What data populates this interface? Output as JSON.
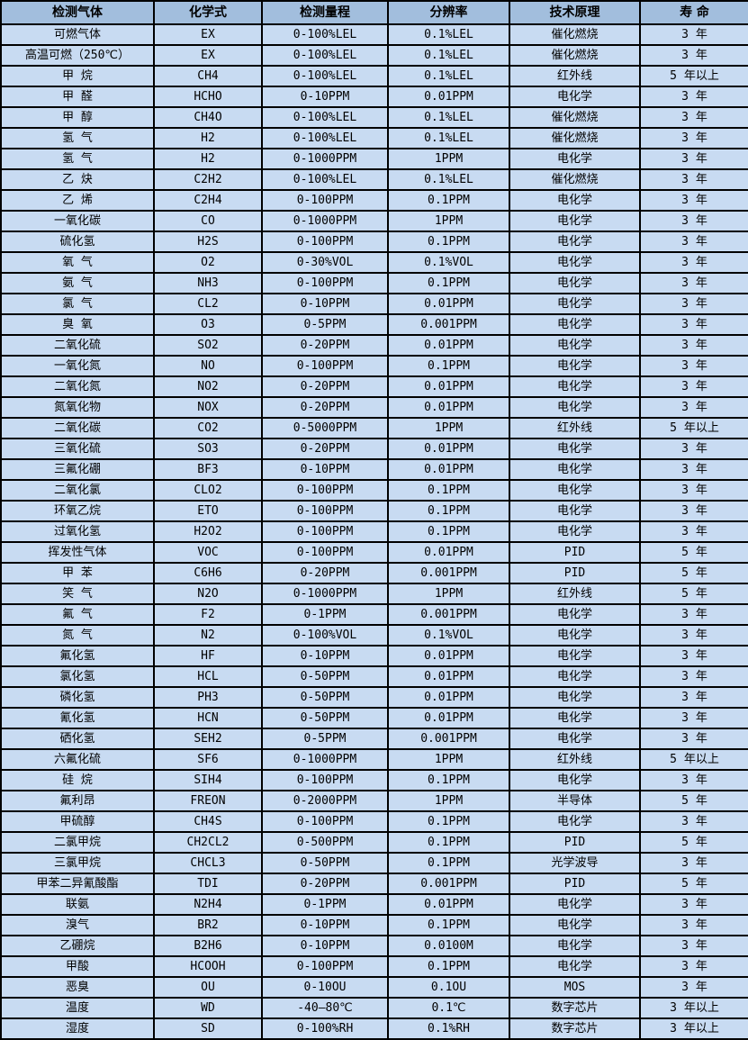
{
  "table": {
    "column_keys": [
      "gas",
      "formula",
      "range",
      "resolution",
      "principle",
      "lifespan"
    ],
    "columns": [
      "检测气体",
      "化学式",
      "检测量程",
      "分辨率",
      "技术原理",
      "寿 命"
    ],
    "rows": [
      [
        "可燃气体",
        "EX",
        "0-100%LEL",
        "0.1%LEL",
        "催化燃烧",
        "3 年"
      ],
      [
        "高温可燃（250℃）",
        "EX",
        "0-100%LEL",
        "0.1%LEL",
        "催化燃烧",
        "3 年"
      ],
      [
        "甲 烷",
        "CH4",
        "0-100%LEL",
        "0.1%LEL",
        "红外线",
        "5 年以上"
      ],
      [
        "甲 醛",
        "HCHO",
        "0-10PPM",
        "0.01PPM",
        "电化学",
        "3 年"
      ],
      [
        "甲 醇",
        "CH4O",
        "0-100%LEL",
        "0.1%LEL",
        "催化燃烧",
        "3 年"
      ],
      [
        "氢 气",
        "H2",
        "0-100%LEL",
        "0.1%LEL",
        "催化燃烧",
        "3 年"
      ],
      [
        "氢 气",
        "H2",
        "0-1000PPM",
        "1PPM",
        "电化学",
        "3 年"
      ],
      [
        "乙 炔",
        "C2H2",
        "0-100%LEL",
        "0.1%LEL",
        "催化燃烧",
        "3 年"
      ],
      [
        "乙 烯",
        "C2H4",
        "0-100PPM",
        "0.1PPM",
        "电化学",
        "3 年"
      ],
      [
        "一氧化碳",
        "CO",
        "0-1000PPM",
        "1PPM",
        "电化学",
        "3 年"
      ],
      [
        "硫化氢",
        "H2S",
        "0-100PPM",
        "0.1PPM",
        "电化学",
        "3 年"
      ],
      [
        "氧 气",
        "O2",
        "0-30%VOL",
        "0.1%VOL",
        "电化学",
        "3 年"
      ],
      [
        "氨 气",
        "NH3",
        "0-100PPM",
        "0.1PPM",
        "电化学",
        "3 年"
      ],
      [
        "氯 气",
        "CL2",
        "0-10PPM",
        "0.01PPM",
        "电化学",
        "3 年"
      ],
      [
        "臭 氧",
        "O3",
        "0-5PPM",
        "0.001PPM",
        "电化学",
        "3 年"
      ],
      [
        "二氧化硫",
        "SO2",
        "0-20PPM",
        "0.01PPM",
        "电化学",
        "3 年"
      ],
      [
        "一氧化氮",
        "NO",
        "0-100PPM",
        "0.1PPM",
        "电化学",
        "3 年"
      ],
      [
        "二氧化氮",
        "NO2",
        "0-20PPM",
        "0.01PPM",
        "电化学",
        "3 年"
      ],
      [
        "氮氧化物",
        "NOX",
        "0-20PPM",
        "0.01PPM",
        "电化学",
        "3 年"
      ],
      [
        "二氧化碳",
        "CO2",
        "0-5000PPM",
        "1PPM",
        "红外线",
        "5 年以上"
      ],
      [
        "三氧化硫",
        "SO3",
        "0-20PPM",
        "0.01PPM",
        "电化学",
        "3 年"
      ],
      [
        "三氟化硼",
        "BF3",
        "0-10PPM",
        "0.01PPM",
        "电化学",
        "3 年"
      ],
      [
        "二氧化氯",
        "CLO2",
        "0-100PPM",
        "0.1PPM",
        "电化学",
        "3 年"
      ],
      [
        "环氧乙烷",
        "ETO",
        "0-100PPM",
        "0.1PPM",
        "电化学",
        "3 年"
      ],
      [
        "过氧化氢",
        "H2O2",
        "0-100PPM",
        "0.1PPM",
        "电化学",
        "3 年"
      ],
      [
        "挥发性气体",
        "VOC",
        "0-100PPM",
        "0.01PPM",
        "PID",
        "5 年"
      ],
      [
        "甲 苯",
        "C6H6",
        "0-20PPM",
        "0.001PPM",
        "PID",
        "5 年"
      ],
      [
        "笑 气",
        "N2O",
        "0-1000PPM",
        "1PPM",
        "红外线",
        "5 年"
      ],
      [
        "氟 气",
        "F2",
        "0-1PPM",
        "0.001PPM",
        "电化学",
        "3 年"
      ],
      [
        "氮 气",
        "N2",
        "0-100%VOL",
        "0.1%VOL",
        "电化学",
        "3 年"
      ],
      [
        "氟化氢",
        "HF",
        "0-10PPM",
        "0.01PPM",
        "电化学",
        "3 年"
      ],
      [
        "氯化氢",
        "HCL",
        "0-50PPM",
        "0.01PPM",
        "电化学",
        "3 年"
      ],
      [
        "磷化氢",
        "PH3",
        "0-50PPM",
        "0.01PPM",
        "电化学",
        "3 年"
      ],
      [
        "氰化氢",
        "HCN",
        "0-50PPM",
        "0.01PPM",
        "电化学",
        "3 年"
      ],
      [
        "硒化氢",
        "SEH2",
        "0-5PPM",
        "0.001PPM",
        "电化学",
        "3 年"
      ],
      [
        "六氟化硫",
        "SF6",
        "0-1000PPM",
        "1PPM",
        "红外线",
        "5 年以上"
      ],
      [
        "硅 烷",
        "SIH4",
        "0-100PPM",
        "0.1PPM",
        "电化学",
        "3 年"
      ],
      [
        "氟利昂",
        "FREON",
        "0-2000PPM",
        "1PPM",
        "半导体",
        "5 年"
      ],
      [
        "甲硫醇",
        "CH4S",
        "0-100PPM",
        "0.1PPM",
        "电化学",
        "3 年"
      ],
      [
        "二氯甲烷",
        "CH2CL2",
        "0-500PPM",
        "0.1PPM",
        "PID",
        "5 年"
      ],
      [
        "三氯甲烷",
        "CHCL3",
        "0-50PPM",
        "0.1PPM",
        "光学波导",
        "3 年"
      ],
      [
        "甲苯二异氰酸酯",
        "TDI",
        "0-20PPM",
        "0.001PPM",
        "PID",
        "5 年"
      ],
      [
        "联氨",
        "N2H4",
        "0-1PPM",
        "0.01PPM",
        "电化学",
        "3 年"
      ],
      [
        "溴气",
        "BR2",
        "0-10PPM",
        "0.1PPM",
        "电化学",
        "3 年"
      ],
      [
        "乙硼烷",
        "B2H6",
        "0-10PPM",
        "0.0100M",
        "电化学",
        "3 年"
      ],
      [
        "甲酸",
        "HCOOH",
        "0-100PPM",
        "0.1PPM",
        "电化学",
        "3 年"
      ],
      [
        "恶臭",
        "OU",
        "0-10OU",
        "0.1OU",
        "MOS",
        "3 年"
      ],
      [
        "温度",
        "WD",
        "-40—80℃",
        "0.1℃",
        "数字芯片",
        "3 年以上"
      ],
      [
        "湿度",
        "SD",
        "0-100%RH",
        "0.1%RH",
        "数字芯片",
        "3 年以上"
      ]
    ]
  },
  "colors": {
    "header_bg": "#a2bedd",
    "row_bg": "#c8dbf2",
    "border": "#000000",
    "text": "#000000"
  }
}
